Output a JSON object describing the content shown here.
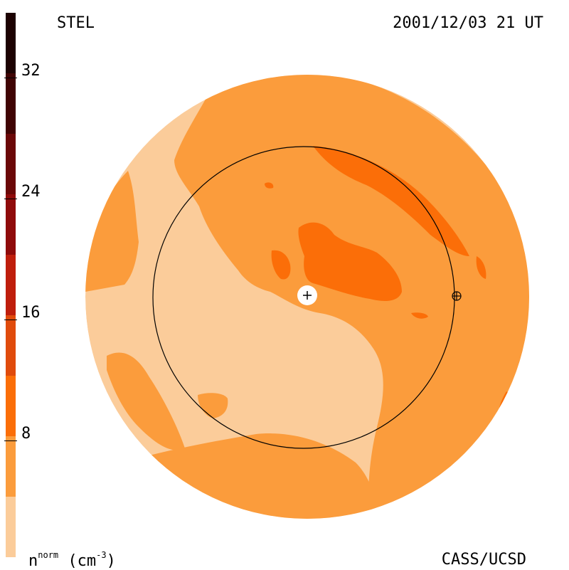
{
  "header": {
    "station": "STEL",
    "timestamp": "2001/12/03 21 UT"
  },
  "footer": {
    "credit": "CASS/UCSD",
    "units_symbol": "n",
    "units_superscript": "norm",
    "units_paren_open": " (cm",
    "units_exponent": "-3",
    "units_paren_close": ")"
  },
  "colorbar": {
    "tick_labels": [
      "32",
      "24",
      "16",
      "8"
    ],
    "tick_values": [
      32,
      24,
      16,
      8
    ],
    "min": 0,
    "max": 36,
    "levels": [
      {
        "from": 0,
        "to": 4,
        "color": "#fbcc9a"
      },
      {
        "from": 4,
        "to": 8,
        "color": "#fb9c3c"
      },
      {
        "from": 8,
        "to": 12,
        "color": "#fb6e08"
      },
      {
        "from": 12,
        "to": 16,
        "color": "#e04b0c"
      },
      {
        "from": 16,
        "to": 20,
        "color": "#bf1e0c"
      },
      {
        "from": 20,
        "to": 24,
        "color": "#8f0b0b"
      },
      {
        "from": 24,
        "to": 28,
        "color": "#6b0808"
      },
      {
        "from": 28,
        "to": 32,
        "color": "#400404"
      },
      {
        "from": 32,
        "to": 36,
        "color": "#1c0202"
      }
    ]
  },
  "colors": {
    "level_low": "#fbcc9a",
    "level_mid": "#fb9c3c",
    "level_high": "#fb6e08",
    "orbit_line": "#000000"
  }
}
